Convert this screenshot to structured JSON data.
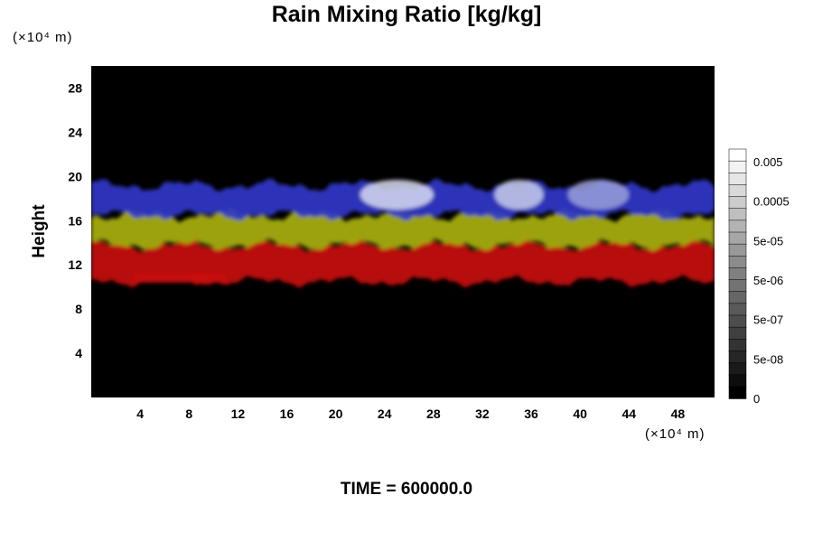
{
  "chart_data": {
    "type": "heatmap",
    "title": "Rain Mixing Ratio [kg/kg]",
    "ylabel": "Height",
    "xlabel": "",
    "y_unit": "(×10⁴ m)",
    "x_unit": "(×10⁴ m)",
    "x_ticks": [
      4,
      8,
      12,
      16,
      20,
      24,
      28,
      32,
      36,
      40,
      44,
      48
    ],
    "y_ticks": [
      4,
      8,
      12,
      16,
      20,
      24,
      28
    ],
    "xlim": [
      0,
      51
    ],
    "ylim": [
      0,
      30
    ],
    "background_color": "#000000",
    "layers": [
      {
        "color": "#c81010",
        "y_range": [
          10.5,
          13.8
        ],
        "extent": [
          0,
          51
        ]
      },
      {
        "color": "#a8b010",
        "y_range": [
          13.8,
          16.5
        ],
        "extent": [
          0,
          51
        ]
      },
      {
        "color": "#3038c8",
        "y_range": [
          16.5,
          19.2
        ],
        "extent": [
          0,
          51
        ]
      }
    ],
    "colorbar": {
      "ticks": [
        "0.005",
        "0.0005",
        "5e-05",
        "5e-06",
        "5e-07",
        "5e-08",
        "0"
      ],
      "levels": 21
    },
    "footer": "TIME = 600000.0"
  }
}
